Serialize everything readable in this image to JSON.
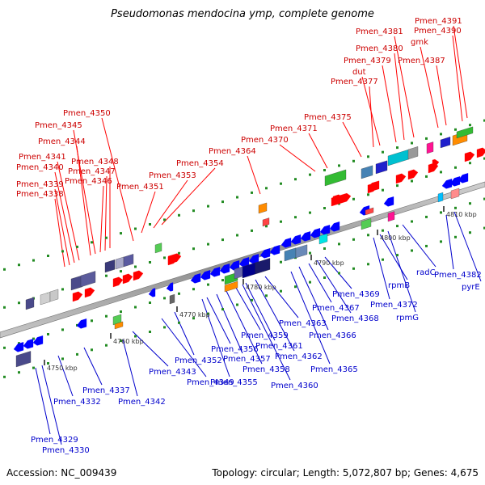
{
  "title": "Pseudomonas mendocina ymp, complete genome",
  "footer": {
    "accession": "Accession: NC_009439",
    "summary": "Topology: circular; Length: 5,072,807 bp; Genes: 4,675"
  },
  "colors": {
    "top_strand_label": "#cc0000",
    "bottom_strand_label": "#0000cc",
    "top_arrow": "#ff0000",
    "bottom_arrow": "#0000ff",
    "backbone": "#a0a0a0",
    "tick": "#228b22"
  },
  "scale_ticks": [
    "4750 kbp",
    "4760 kbp",
    "4770 kbp",
    "4780 kbp",
    "4790 kbp",
    "4800 kbp",
    "4810 kbp"
  ],
  "top_labels": [
    "Pmen_4338",
    "Pmen_4339",
    "Pmen_4340",
    "Pmen_4341",
    "Pmen_4346",
    "Pmen_4347",
    "Pmen_4348",
    "Pmen_4344",
    "Pmen_4345",
    "Pmen_4350",
    "Pmen_4351",
    "Pmen_4353",
    "Pmen_4354",
    "Pmen_4364",
    "Pmen_4370",
    "Pmen_4371",
    "Pmen_4375",
    "Pmen_4377",
    "dut",
    "Pmen_4379",
    "Pmen_4380",
    "Pmen_4381",
    "gmk",
    "Pmen_4387",
    "Pmen_4390",
    "Pmen_4391"
  ],
  "bottom_labels": [
    "Pmen_4329",
    "Pmen_4330",
    "Pmen_4332",
    "Pmen_4337",
    "Pmen_4342",
    "Pmen_4343",
    "Pmen_4349",
    "Pmen_4352",
    "Pmen_4355",
    "Pmen_4356",
    "Pmen_4357",
    "Pmen_4358",
    "Pmen_4359",
    "Pmen_4360",
    "Pmen_4361",
    "Pmen_4362",
    "Pmen_4363",
    "Pmen_4365",
    "Pmen_4366",
    "Pmen_4367",
    "Pmen_4368",
    "Pmen_4369",
    "Pmen_4372",
    "rpmB",
    "rpmG",
    "radC",
    "Pmen_4382",
    "pyrE"
  ]
}
